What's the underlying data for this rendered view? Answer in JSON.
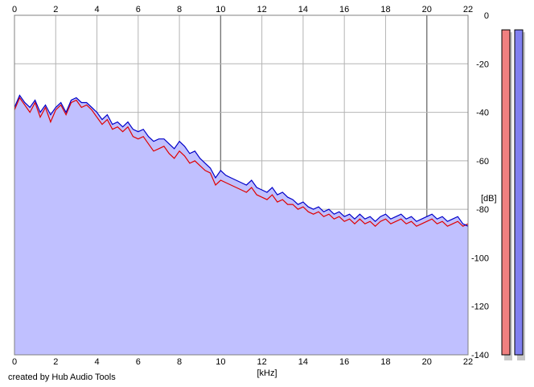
{
  "chart_data": {
    "type": "area",
    "x_unit": "[kHz]",
    "y_unit": "[dB]",
    "xlim": [
      0,
      22
    ],
    "ylim": [
      -140,
      0
    ],
    "x_ticks": [
      0,
      2,
      4,
      6,
      8,
      10,
      12,
      14,
      16,
      18,
      20,
      22
    ],
    "y_ticks": [
      0,
      -20,
      -40,
      -60,
      -80,
      -100,
      -120,
      -140
    ],
    "grid": true,
    "series": [
      {
        "color": "#e00000",
        "x": [
          0.0,
          0.25,
          0.5,
          0.75,
          1.0,
          1.25,
          1.5,
          1.75,
          2.0,
          2.25,
          2.5,
          2.75,
          3.0,
          3.25,
          3.5,
          3.75,
          4.0,
          4.25,
          4.5,
          4.75,
          5.0,
          5.25,
          5.5,
          5.75,
          6.0,
          6.25,
          6.5,
          6.75,
          7.0,
          7.25,
          7.5,
          7.75,
          8.0,
          8.25,
          8.5,
          8.75,
          9.0,
          9.25,
          9.5,
          9.75,
          10.0,
          10.25,
          10.5,
          10.75,
          11.0,
          11.25,
          11.5,
          11.75,
          12.0,
          12.25,
          12.5,
          12.75,
          13.0,
          13.25,
          13.5,
          13.75,
          14.0,
          14.25,
          14.5,
          14.75,
          15.0,
          15.25,
          15.5,
          15.75,
          16.0,
          16.25,
          16.5,
          16.75,
          17.0,
          17.25,
          17.5,
          17.75,
          18.0,
          18.25,
          18.5,
          18.75,
          19.0,
          19.25,
          19.5,
          19.75,
          20.0,
          20.25,
          20.5,
          20.75,
          21.0,
          21.25,
          21.5,
          21.75,
          22.0
        ],
        "values": [
          -39,
          -34,
          -37,
          -40,
          -36,
          -42,
          -38,
          -44,
          -39,
          -37,
          -41,
          -36,
          -35,
          -38,
          -37,
          -39,
          -42,
          -45,
          -43,
          -47,
          -46,
          -48,
          -46,
          -50,
          -51,
          -50,
          -53,
          -56,
          -55,
          -54,
          -57,
          -59,
          -56,
          -58,
          -61,
          -60,
          -62,
          -64,
          -65,
          -70,
          -68,
          -69,
          -70,
          -71,
          -72,
          -73,
          -71,
          -74,
          -75,
          -76,
          -74,
          -77,
          -76,
          -78,
          -78,
          -80,
          -79,
          -81,
          -82,
          -81,
          -83,
          -82,
          -84,
          -83,
          -85,
          -84,
          -86,
          -84,
          -86,
          -85,
          -87,
          -85,
          -84,
          -86,
          -85,
          -84,
          -86,
          -85,
          -87,
          -86,
          -85,
          -84,
          -86,
          -85,
          -87,
          -86,
          -85,
          -87,
          -86
        ]
      },
      {
        "color": "#0000c8",
        "x": [
          0.0,
          0.25,
          0.5,
          0.75,
          1.0,
          1.25,
          1.5,
          1.75,
          2.0,
          2.25,
          2.5,
          2.75,
          3.0,
          3.25,
          3.5,
          3.75,
          4.0,
          4.25,
          4.5,
          4.75,
          5.0,
          5.25,
          5.5,
          5.75,
          6.0,
          6.25,
          6.5,
          6.75,
          7.0,
          7.25,
          7.5,
          7.75,
          8.0,
          8.25,
          8.5,
          8.75,
          9.0,
          9.25,
          9.5,
          9.75,
          10.0,
          10.25,
          10.5,
          10.75,
          11.0,
          11.25,
          11.5,
          11.75,
          12.0,
          12.25,
          12.5,
          12.75,
          13.0,
          13.25,
          13.5,
          13.75,
          14.0,
          14.25,
          14.5,
          14.75,
          15.0,
          15.25,
          15.5,
          15.75,
          16.0,
          16.25,
          16.5,
          16.75,
          17.0,
          17.25,
          17.5,
          17.75,
          18.0,
          18.25,
          18.5,
          18.75,
          19.0,
          19.25,
          19.5,
          19.75,
          20.0,
          20.25,
          20.5,
          20.75,
          21.0,
          21.25,
          21.5,
          21.75,
          22.0
        ],
        "values": [
          -38,
          -33,
          -36,
          -38,
          -35,
          -40,
          -37,
          -41,
          -38,
          -36,
          -40,
          -35,
          -34,
          -36,
          -36,
          -38,
          -40,
          -43,
          -41,
          -45,
          -44,
          -46,
          -44,
          -47,
          -48,
          -47,
          -50,
          -52,
          -51,
          -51,
          -53,
          -55,
          -52,
          -54,
          -57,
          -56,
          -59,
          -61,
          -63,
          -67,
          -64,
          -66,
          -67,
          -68,
          -69,
          -70,
          -68,
          -71,
          -72,
          -73,
          -71,
          -74,
          -73,
          -75,
          -76,
          -78,
          -77,
          -79,
          -80,
          -79,
          -81,
          -80,
          -82,
          -81,
          -83,
          -82,
          -84,
          -82,
          -84,
          -83,
          -85,
          -83,
          -82,
          -84,
          -83,
          -82,
          -84,
          -83,
          -85,
          -84,
          -83,
          -82,
          -84,
          -83,
          -85,
          -84,
          -83,
          -86,
          -87
        ]
      }
    ],
    "fill_color": "#c0c0ff",
    "level_meters": [
      {
        "color": "#f08080",
        "level_db": -6
      },
      {
        "color": "#8080f0",
        "level_db": -6
      }
    ]
  },
  "footer": {
    "credit": "created by Hub Audio Tools"
  }
}
